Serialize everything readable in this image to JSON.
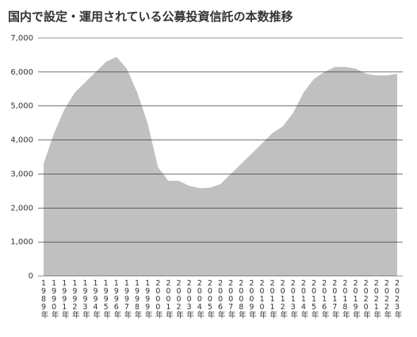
{
  "chart_data": {
    "type": "area",
    "title": "国内で設定・運用されている公募投資信託の本数推移",
    "categories": [
      "1989年",
      "1990年",
      "1991年",
      "1992年",
      "1993年",
      "1994年",
      "1995年",
      "1996年",
      "1997年",
      "1998年",
      "1999年",
      "2000年",
      "2001年",
      "2002年",
      "2003年",
      "2004年",
      "2005年",
      "2006年",
      "2007年",
      "2008年",
      "2009年",
      "2010年",
      "2011年",
      "2012年",
      "2013年",
      "2014年",
      "2015年",
      "2016年",
      "2017年",
      "2018年",
      "2019年",
      "2020年",
      "2021年",
      "2022年",
      "2023年"
    ],
    "values": [
      3300,
      4200,
      4900,
      5400,
      5700,
      6000,
      6300,
      6450,
      6100,
      5400,
      4500,
      3200,
      2800,
      2800,
      2650,
      2580,
      2600,
      2700,
      3000,
      3300,
      3600,
      3900,
      4200,
      4400,
      4800,
      5400,
      5800,
      6000,
      6150,
      6150,
      6100,
      5950,
      5900,
      5900,
      5950
    ],
    "color": "#c0c0c0",
    "ylim": [
      0,
      7000
    ],
    "yticks": [
      0,
      {
        "value": 1000,
        "label": "1,000"
      },
      {
        "value": 2000,
        "label": "2,000"
      },
      {
        "value": 3000,
        "label": "3,000"
      },
      {
        "value": 4000,
        "label": "4,000"
      },
      {
        "value": 5000,
        "label": "5,000"
      },
      {
        "value": 6000,
        "label": "6,000"
      },
      {
        "value": 7000,
        "label": "7,000"
      }
    ],
    "grid": true
  }
}
